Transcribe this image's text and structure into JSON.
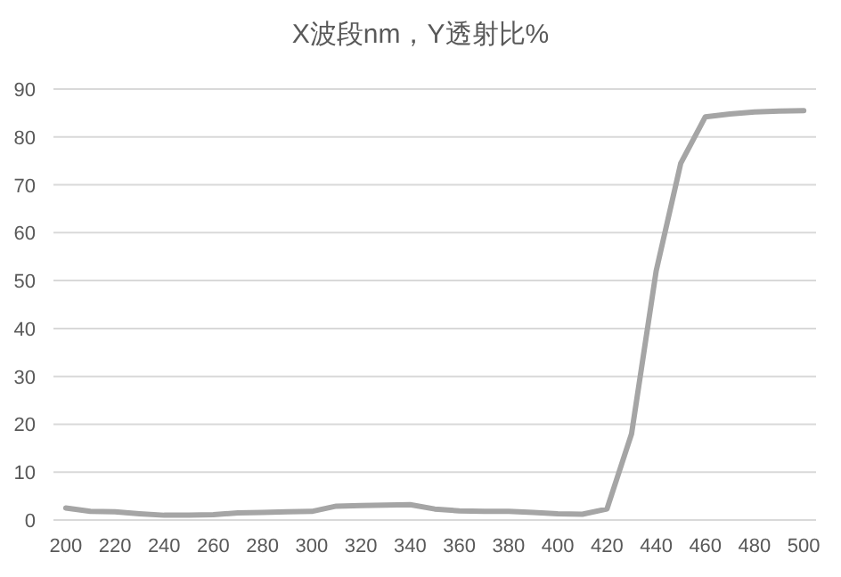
{
  "chart_data": {
    "type": "line",
    "title": "X波段nm，Y透射比%",
    "x": [
      200,
      210,
      220,
      230,
      240,
      250,
      260,
      270,
      280,
      290,
      300,
      310,
      320,
      330,
      340,
      350,
      360,
      370,
      380,
      390,
      400,
      410,
      420,
      430,
      440,
      450,
      460,
      470,
      480,
      490,
      500
    ],
    "series": [
      {
        "color": "#a5a5a5",
        "values": [
          2.5,
          1.8,
          1.7,
          1.3,
          1.0,
          1.0,
          1.1,
          1.5,
          1.6,
          1.7,
          1.8,
          2.9,
          3.0,
          3.1,
          3.2,
          2.3,
          1.9,
          1.8,
          1.8,
          1.6,
          1.3,
          1.2,
          2.3,
          18,
          52,
          74.5,
          84.2,
          84.8,
          85.2,
          85.4,
          85.5
        ]
      }
    ],
    "xlim": [
      195,
      505
    ],
    "xticks": [
      200,
      220,
      240,
      260,
      280,
      300,
      320,
      340,
      360,
      380,
      400,
      420,
      440,
      460,
      480,
      500
    ],
    "ylim": [
      0,
      90
    ],
    "yticks": [
      0,
      10,
      20,
      30,
      40,
      50,
      60,
      70,
      80,
      90
    ],
    "grid": "y",
    "marker": "none",
    "line_style": "solid"
  }
}
